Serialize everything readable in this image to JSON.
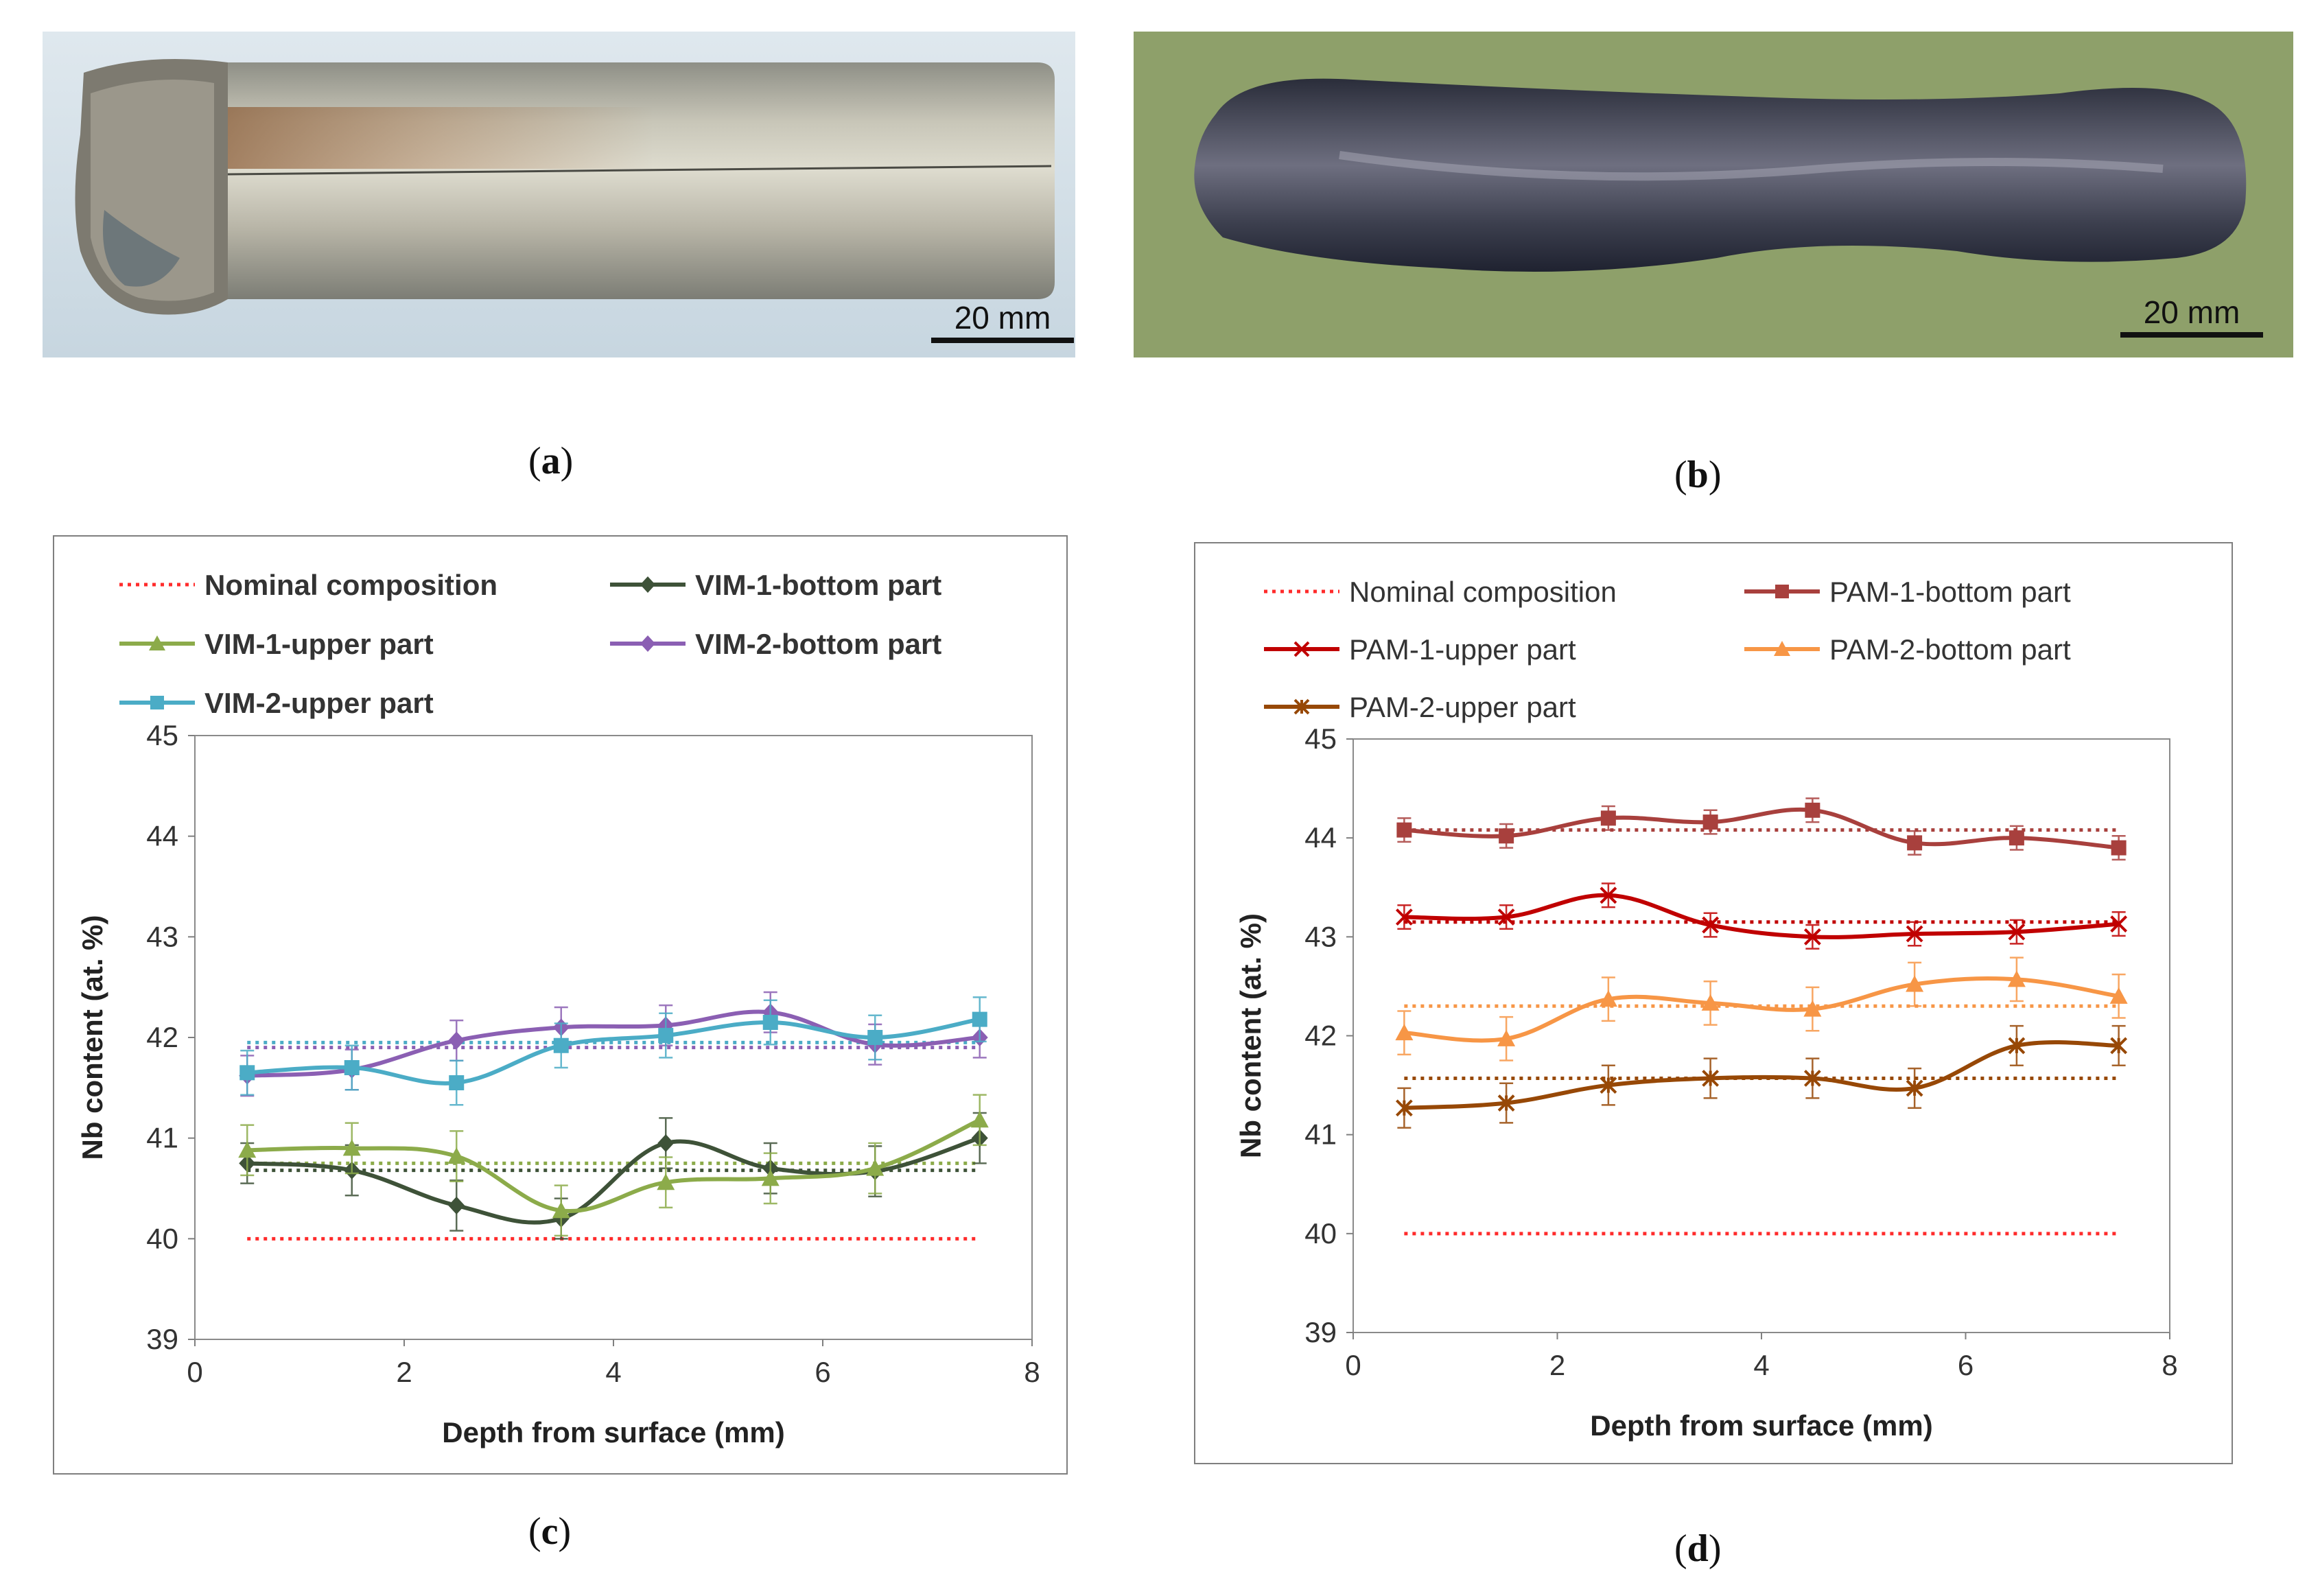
{
  "panels": {
    "a": {
      "caption": "a",
      "scale_label": "20 mm"
    },
    "b": {
      "caption": "b",
      "scale_label": "20 mm"
    },
    "c": {
      "caption": "c"
    },
    "d": {
      "caption": "d"
    }
  },
  "colors": {
    "nominal": "#ff2b2b",
    "vim1_bottom": "#3e5238",
    "vim1_upper": "#8cab4a",
    "vim2_bottom": "#8b5fb3",
    "vim2_upper": "#4bacc6",
    "pam1_bottom": "#a8403d",
    "pam1_upper": "#c00000",
    "pam2_bottom": "#f79646",
    "pam2_upper": "#974806"
  },
  "chart_data": [
    {
      "panel": "c",
      "type": "line",
      "xlabel": "Depth from surface (mm)",
      "ylabel": "Nb content (at. %)",
      "xlim": [
        0,
        8
      ],
      "ylim": [
        39,
        45
      ],
      "xticks": [
        0,
        2,
        4,
        6,
        8
      ],
      "yticks": [
        39,
        40,
        41,
        42,
        43,
        44,
        45
      ],
      "x": [
        0.5,
        1.5,
        2.5,
        3.5,
        4.5,
        5.5,
        6.5,
        7.5
      ],
      "legend": {
        "position": "top",
        "entries": [
          "Nominal composition",
          "VIM-1-bottom part",
          "VIM-1-upper part",
          "VIM-2-bottom part",
          "VIM-2-upper part"
        ]
      },
      "reference_lines": [
        {
          "name": "Nominal composition",
          "value": 40.0,
          "color": "#ff2b2b"
        },
        {
          "value": 40.68,
          "color": "#3e5238"
        },
        {
          "value": 40.75,
          "color": "#8cab4a"
        },
        {
          "value": 41.9,
          "color": "#8b5fb3"
        },
        {
          "value": 41.95,
          "color": "#4bacc6"
        }
      ],
      "series": [
        {
          "name": "VIM-1-bottom part",
          "color": "#3e5238",
          "marker": "diamond",
          "values": [
            40.75,
            40.68,
            40.33,
            40.2,
            40.95,
            40.7,
            40.67,
            41.0
          ],
          "error": [
            0.2,
            0.25,
            0.25,
            0.2,
            0.25,
            0.25,
            0.25,
            0.25
          ]
        },
        {
          "name": "VIM-1-upper part",
          "color": "#8cab4a",
          "marker": "triangle",
          "values": [
            40.88,
            40.9,
            40.82,
            40.28,
            40.56,
            40.6,
            40.7,
            41.18
          ],
          "error": [
            0.25,
            0.25,
            0.25,
            0.25,
            0.25,
            0.25,
            0.25,
            0.25
          ]
        },
        {
          "name": "VIM-2-bottom part",
          "color": "#8b5fb3",
          "marker": "diamond",
          "values": [
            41.62,
            41.68,
            41.97,
            42.1,
            42.12,
            42.25,
            41.93,
            42.0
          ],
          "error": [
            0.2,
            0.2,
            0.2,
            0.2,
            0.2,
            0.2,
            0.2,
            0.2
          ]
        },
        {
          "name": "VIM-2-upper part",
          "color": "#4bacc6",
          "marker": "square",
          "values": [
            41.65,
            41.7,
            41.55,
            41.92,
            42.02,
            42.15,
            42.0,
            42.18
          ],
          "error": [
            0.22,
            0.22,
            0.22,
            0.22,
            0.22,
            0.22,
            0.22,
            0.22
          ]
        }
      ]
    },
    {
      "panel": "d",
      "type": "line",
      "xlabel": "Depth from surface (mm)",
      "ylabel": "Nb content (at. %)",
      "xlim": [
        0,
        8
      ],
      "ylim": [
        39,
        45
      ],
      "xticks": [
        0,
        2,
        4,
        6,
        8
      ],
      "yticks": [
        39,
        40,
        41,
        42,
        43,
        44,
        45
      ],
      "x": [
        0.5,
        1.5,
        2.5,
        3.5,
        4.5,
        5.5,
        6.5,
        7.5
      ],
      "legend": {
        "position": "top",
        "entries": [
          "Nominal composition",
          "PAM-1-bottom part",
          "PAM-1-upper part",
          "PAM-2-bottom part",
          "PAM-2-upper part"
        ]
      },
      "reference_lines": [
        {
          "name": "Nominal composition",
          "value": 40.0,
          "color": "#ff2b2b"
        },
        {
          "value": 44.08,
          "color": "#a8403d"
        },
        {
          "value": 43.15,
          "color": "#c00000"
        },
        {
          "value": 42.3,
          "color": "#f79646"
        },
        {
          "value": 41.57,
          "color": "#974806"
        }
      ],
      "series": [
        {
          "name": "PAM-1-bottom part",
          "color": "#a8403d",
          "marker": "square",
          "values": [
            44.08,
            44.02,
            44.2,
            44.16,
            44.28,
            43.95,
            44.0,
            43.9
          ],
          "error": [
            0.12,
            0.12,
            0.12,
            0.12,
            0.12,
            0.12,
            0.12,
            0.12
          ]
        },
        {
          "name": "PAM-1-upper part",
          "color": "#c00000",
          "marker": "x",
          "values": [
            43.2,
            43.2,
            43.42,
            43.12,
            43.0,
            43.03,
            43.05,
            43.13
          ],
          "error": [
            0.12,
            0.12,
            0.12,
            0.12,
            0.12,
            0.12,
            0.12,
            0.12
          ]
        },
        {
          "name": "PAM-2-bottom part",
          "color": "#f79646",
          "marker": "triangle",
          "values": [
            42.03,
            41.97,
            42.37,
            42.33,
            42.27,
            42.52,
            42.57,
            42.4
          ],
          "error": [
            0.22,
            0.22,
            0.22,
            0.22,
            0.22,
            0.22,
            0.22,
            0.22
          ]
        },
        {
          "name": "PAM-2-upper part",
          "color": "#974806",
          "marker": "star",
          "values": [
            41.27,
            41.32,
            41.5,
            41.57,
            41.57,
            41.47,
            41.9,
            41.9
          ],
          "error": [
            0.2,
            0.2,
            0.2,
            0.2,
            0.2,
            0.2,
            0.2,
            0.2
          ]
        }
      ]
    }
  ]
}
